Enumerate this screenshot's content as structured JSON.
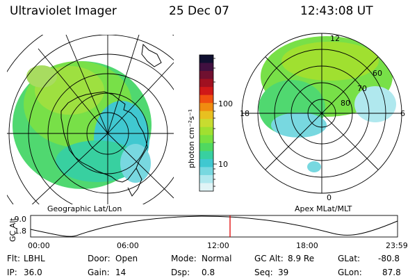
{
  "header": {
    "title": "Ultraviolet Imager",
    "date": "25 Dec 07",
    "time": "12:43:08 UT"
  },
  "maps": {
    "left_caption": "Geographic Lat/Lon",
    "right_caption": "Apex MLat/MLT",
    "right_mlt_labels": [
      "12",
      "18",
      "6",
      "0"
    ],
    "right_mlat_labels": [
      "60",
      "70",
      "80"
    ]
  },
  "colorbar": {
    "unit_label": "photon cm⁻²s⁻¹",
    "ticks": [
      "100",
      "10"
    ],
    "colors": [
      "#101030",
      "#401040",
      "#701030",
      "#a01020",
      "#d01818",
      "#f05010",
      "#f08c10",
      "#e8c020",
      "#c8dc30",
      "#a0e030",
      "#78e040",
      "#50d860",
      "#38d0a0",
      "#40c8d0",
      "#78d8e0",
      "#b0e8ee",
      "#e0f4f6"
    ]
  },
  "timeline": {
    "y_label": "GC Alt",
    "y_ticks": [
      "9.0",
      "1.8"
    ],
    "x_ticks": [
      "00:00",
      "06:00",
      "12:00",
      "18:00",
      "23:59"
    ],
    "current_marker_color": "#e00000"
  },
  "footer": {
    "rows": [
      [
        {
          "key": "Flt:",
          "val": "LBHL"
        },
        {
          "key": "Door:",
          "val": "Open"
        },
        {
          "key": "Mode:",
          "val": "Normal"
        },
        {
          "key": "GC Alt:",
          "val": "8.9 Re"
        },
        {
          "key": "GLat:",
          "val": "-80.8"
        }
      ],
      [
        {
          "key": "IP:",
          "val": "36.0"
        },
        {
          "key": "Gain:",
          "val": "14"
        },
        {
          "key": "Dsp:",
          "val": "0.8"
        },
        {
          "key": "Seq:",
          "val": "39"
        },
        {
          "key": "GLon:",
          "val": "87.8"
        }
      ]
    ]
  }
}
